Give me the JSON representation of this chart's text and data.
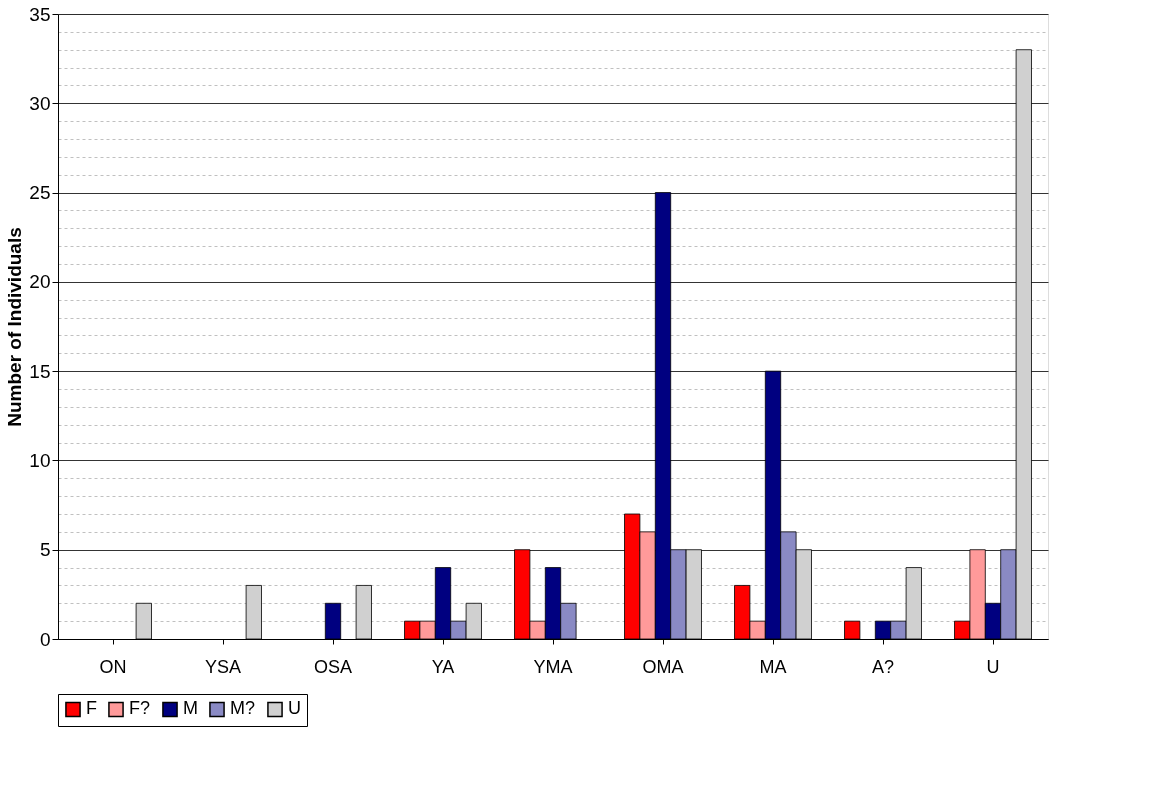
{
  "chart_data": {
    "type": "bar",
    "ylabel": "Number of Individuals",
    "categories": [
      "ON",
      "YSA",
      "OSA",
      "YA",
      "YMA",
      "OMA",
      "MA",
      "A?",
      "U"
    ],
    "series": [
      {
        "name": "F",
        "color": "#ff0000",
        "values": [
          null,
          null,
          null,
          1,
          5,
          7,
          3,
          1,
          1
        ]
      },
      {
        "name": "F?",
        "color": "#ff9a9a",
        "values": [
          null,
          null,
          null,
          1,
          1,
          6,
          1,
          null,
          5
        ]
      },
      {
        "name": "M",
        "color": "#000080",
        "values": [
          null,
          null,
          2,
          4,
          4,
          25,
          15,
          1,
          2
        ]
      },
      {
        "name": "M?",
        "color": "#8a8ac4",
        "values": [
          null,
          null,
          null,
          1,
          2,
          5,
          6,
          1,
          5
        ]
      },
      {
        "name": "U",
        "color": "#d0d0d0",
        "values": [
          2,
          3,
          3,
          2,
          null,
          5,
          5,
          4,
          33
        ]
      }
    ],
    "ylim": [
      0,
      35
    ],
    "yticks": [
      0,
      {
        "value": 1,
        "label": null
      },
      {
        "value": 2,
        "label": null
      },
      {
        "value": 3,
        "label": null
      },
      {
        "value": 4,
        "label": null
      },
      5,
      {
        "value": 6,
        "label": null
      },
      {
        "value": 7,
        "label": null
      },
      {
        "value": 8,
        "label": null
      },
      {
        "value": 9,
        "label": null
      },
      10,
      {
        "value": 11,
        "label": null
      },
      {
        "value": 12,
        "label": null
      },
      {
        "value": 13,
        "label": null
      },
      {
        "value": 14,
        "label": null
      },
      15,
      {
        "value": 16,
        "label": null
      },
      {
        "value": 17,
        "label": null
      },
      {
        "value": 18,
        "label": null
      },
      {
        "value": 19,
        "label": null
      },
      20,
      {
        "value": 21,
        "label": null
      },
      {
        "value": 22,
        "label": null
      },
      {
        "value": 23,
        "label": null
      },
      {
        "value": 24,
        "label": null
      },
      25,
      {
        "value": 26,
        "label": null
      },
      {
        "value": 27,
        "label": null
      },
      {
        "value": 28,
        "label": null
      },
      {
        "value": 29,
        "label": null
      },
      30,
      {
        "value": 31,
        "label": null
      },
      {
        "value": 32,
        "label": null
      },
      {
        "value": 33,
        "label": null
      },
      {
        "value": 34,
        "label": null
      },
      35
    ],
    "grid": "y",
    "legend": "bottom"
  }
}
